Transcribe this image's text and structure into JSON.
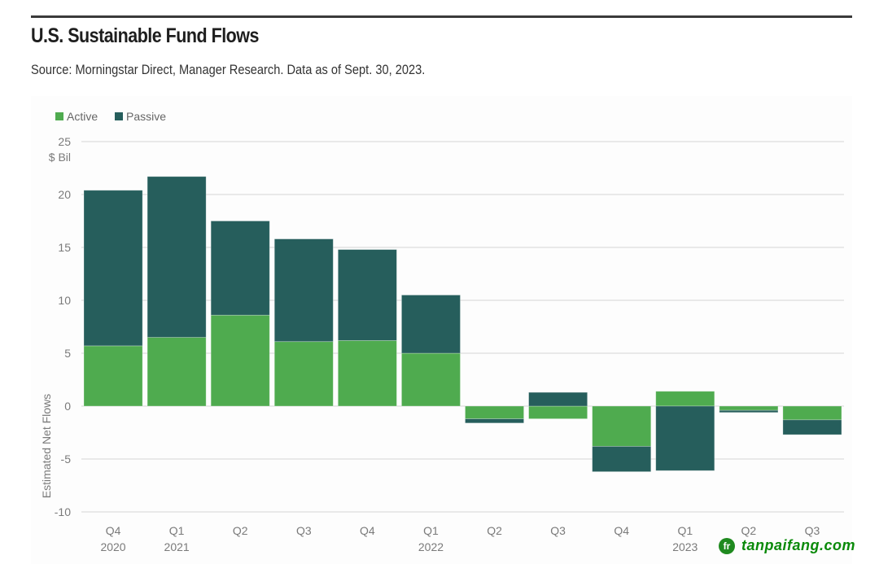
{
  "header": {
    "title": "U.S. Sustainable Fund Flows",
    "subtitle": "Source: Morningstar Direct, Manager Research. Data as of Sept. 30, 2023."
  },
  "watermark": {
    "logo_glyph": "fr",
    "text": "tanpaifang.com"
  },
  "colors": {
    "active": "#4fab4f",
    "passive": "#265e5c",
    "grid": "#dddddd",
    "rule": "#3a3a3a"
  },
  "chart_data": {
    "type": "bar",
    "stacked": true,
    "title": "U.S. Sustainable Fund Flows",
    "subtitle": "Source: Morningstar Direct, Manager Research. Data as of Sept. 30, 2023.",
    "xlabel": "",
    "ylabel": "Estimated Net Flows",
    "yunit": "$ Bil",
    "ylim": [
      -10,
      25
    ],
    "yticks": [
      25,
      20,
      15,
      10,
      5,
      0,
      -5,
      -10
    ],
    "grid": true,
    "legend_position": "top-left",
    "categories": [
      {
        "quarter": "Q4",
        "year": "2020"
      },
      {
        "quarter": "Q1",
        "year": "2021"
      },
      {
        "quarter": "Q2",
        "year": ""
      },
      {
        "quarter": "Q3",
        "year": ""
      },
      {
        "quarter": "Q4",
        "year": ""
      },
      {
        "quarter": "Q1",
        "year": "2022"
      },
      {
        "quarter": "Q2",
        "year": ""
      },
      {
        "quarter": "Q3",
        "year": ""
      },
      {
        "quarter": "Q4",
        "year": ""
      },
      {
        "quarter": "Q1",
        "year": "2023"
      },
      {
        "quarter": "Q2",
        "year": ""
      },
      {
        "quarter": "Q3",
        "year": ""
      }
    ],
    "series": [
      {
        "name": "Active",
        "color": "#4fab4f",
        "values": [
          5.7,
          6.5,
          8.6,
          6.1,
          6.2,
          5.0,
          -1.2,
          -1.2,
          -3.8,
          1.4,
          -0.4,
          -1.3
        ]
      },
      {
        "name": "Passive",
        "color": "#265e5c",
        "values": [
          14.7,
          15.2,
          8.9,
          9.7,
          8.6,
          5.5,
          -0.4,
          1.3,
          -2.4,
          -6.1,
          -0.2,
          -1.4
        ]
      }
    ]
  }
}
